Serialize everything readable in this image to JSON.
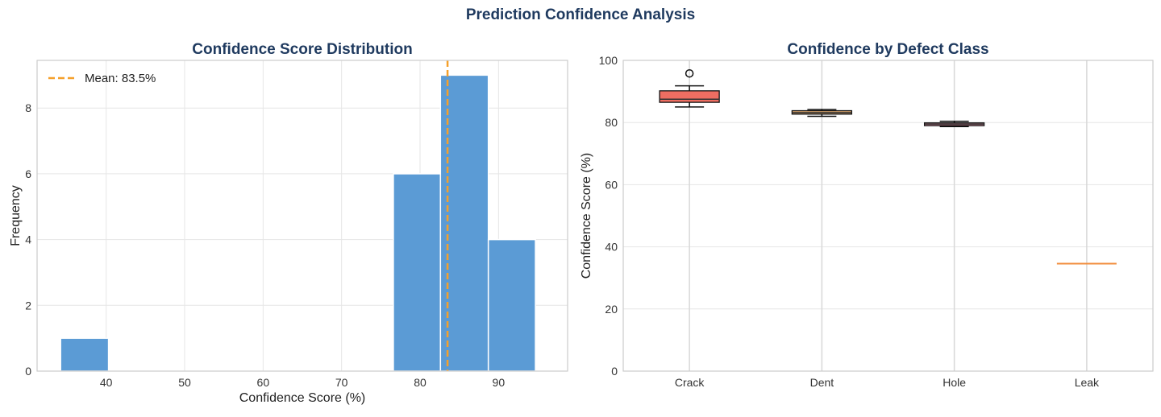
{
  "figure": {
    "suptitle": "Prediction Confidence Analysis"
  },
  "colors": {
    "title": "#1f3a5f",
    "bar": "#5b9bd5",
    "mean_line": "#f5a02a",
    "grid": "#e6e6e6",
    "axis": "#cccccc",
    "box_crack": "#ee6e62",
    "box_dent": "#d9a36a",
    "box_hole": "#e8879c",
    "median": "#f28d3c"
  },
  "chart_data": [
    {
      "type": "bar",
      "subtype": "histogram",
      "title": "Confidence Score Distribution",
      "xlabel": "Confidence Score (%)",
      "ylabel": "Frequency",
      "xlim": [
        31.2,
        98.8
      ],
      "ylim": [
        0,
        9.45
      ],
      "xticks": [
        40,
        50,
        60,
        70,
        80,
        90
      ],
      "yticks": [
        0,
        2,
        4,
        6,
        8
      ],
      "bins": [
        {
          "x0": 34.2,
          "x1": 40.3,
          "count": 1
        },
        {
          "x0": 40.3,
          "x1": 46.3,
          "count": 0
        },
        {
          "x0": 46.3,
          "x1": 52.4,
          "count": 0
        },
        {
          "x0": 52.4,
          "x1": 58.4,
          "count": 0
        },
        {
          "x0": 58.4,
          "x1": 64.5,
          "count": 0
        },
        {
          "x0": 64.5,
          "x1": 70.5,
          "count": 0
        },
        {
          "x0": 70.5,
          "x1": 76.6,
          "count": 0
        },
        {
          "x0": 76.6,
          "x1": 82.6,
          "count": 6
        },
        {
          "x0": 82.6,
          "x1": 88.7,
          "count": 9
        },
        {
          "x0": 88.7,
          "x1": 94.7,
          "count": 4
        }
      ],
      "mean": 83.5,
      "legend": {
        "label": "Mean: 83.5%",
        "placement": "upper-left"
      },
      "grid": true
    },
    {
      "type": "box",
      "title": "Confidence by Defect Class",
      "xlabel": "",
      "ylabel": "Confidence Score (%)",
      "ylim": [
        0,
        100
      ],
      "yticks": [
        0,
        20,
        40,
        60,
        80,
        100
      ],
      "categories": [
        "Crack",
        "Dent",
        "Hole",
        "Leak"
      ],
      "boxes": [
        {
          "name": "Crack",
          "whislo": 85,
          "q1": 86.5,
          "med": 87.5,
          "q3": 90.2,
          "whishi": 91.8,
          "fliers": [
            95.8
          ],
          "color_key": "box_crack"
        },
        {
          "name": "Dent",
          "whislo": 82,
          "q1": 82.7,
          "med": 83.2,
          "q3": 83.8,
          "whishi": 84.2,
          "fliers": [],
          "color_key": "box_dent"
        },
        {
          "name": "Hole",
          "whislo": 78.7,
          "q1": 79,
          "med": 79.5,
          "q3": 79.9,
          "whishi": 80.4,
          "fliers": [],
          "color_key": "box_hole"
        },
        {
          "name": "Leak",
          "whislo": 34.6,
          "q1": 34.6,
          "med": 34.6,
          "q3": 34.6,
          "whishi": 34.6,
          "fliers": [],
          "color_key": "box_hole"
        }
      ],
      "grid": true
    }
  ]
}
